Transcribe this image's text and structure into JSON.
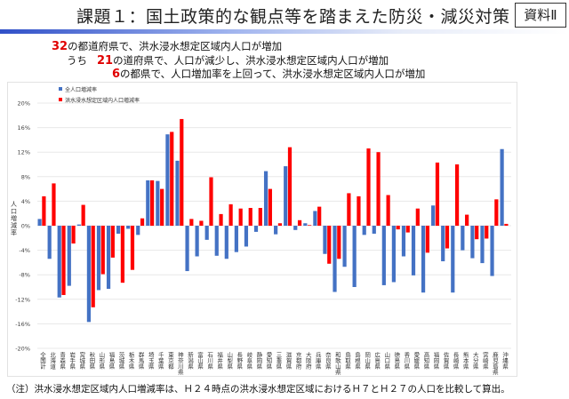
{
  "header": {
    "title": "課題１：国土政策的な観点等を踏まえた防災・減災対策",
    "badge": "資料Ⅱ"
  },
  "summary": {
    "line1": {
      "num": "32",
      "text": "の都道府県で、洪水浸水想定区域内人口が増加"
    },
    "line2": {
      "prefix": "うち",
      "num": "21",
      "text": "の道府県で、人口が減少し、洪水浸水想定区域内人口が増加"
    },
    "line3": {
      "num": "6",
      "text": "の都県で、人口増加率を上回って、洪水浸水想定区域内人口が増加"
    }
  },
  "note": "（注）洪水浸水想定区域内人口増減率は、Ｈ２４時点の洪水浸水想定区域におけるＨ７とＨ２７の人口を比較して算出。",
  "chart_data": {
    "type": "bar",
    "ylabel": "人口増減率",
    "ylim": [
      -20,
      20
    ],
    "yticks": [
      "20%",
      "16%",
      "12%",
      "8%",
      "4%",
      "0%",
      "-4%",
      "-8%",
      "-12%",
      "-16%",
      "-20%"
    ],
    "grid": true,
    "legend_position": "top-left",
    "categories": [
      "全国計",
      "北海道",
      "青森県",
      "岩手県",
      "宮城県",
      "秋田県",
      "山形県",
      "福島県",
      "茨城県",
      "栃木県",
      "群馬県",
      "埼玉県",
      "千葉県",
      "東京都",
      "神奈川県",
      "新潟県",
      "富山県",
      "石川県",
      "福井県",
      "山梨県",
      "長野県",
      "岐阜県",
      "静岡県",
      "愛知県",
      "三重県",
      "滋賀県",
      "京都府",
      "大阪府",
      "兵庫県",
      "奈良県",
      "和歌山県",
      "鳥取県",
      "島根県",
      "岡山県",
      "広島県",
      "山口県",
      "徳島県",
      "香川県",
      "愛媛県",
      "高知県",
      "福岡県",
      "佐賀県",
      "長崎県",
      "熊本県",
      "大分県",
      "宮崎県",
      "鹿児島県",
      "沖縄県"
    ],
    "series": [
      {
        "name": "全人口増減率",
        "color": "#4472c4",
        "values": [
          1.1,
          -5.4,
          -11.7,
          -9.8,
          0.2,
          -15.7,
          -10.5,
          -10.3,
          -1.3,
          -0.5,
          -1.5,
          7.4,
          7.3,
          14.9,
          10.6,
          -7.4,
          -5.0,
          -2.3,
          -4.9,
          -5.4,
          -4.3,
          -3.4,
          -1.0,
          8.9,
          -1.4,
          9.7,
          -0.7,
          0.4,
          2.4,
          -4.6,
          -10.8,
          -6.7,
          -10.0,
          -1.5,
          -1.3,
          -9.7,
          -9.2,
          -5.0,
          -8.1,
          -10.9,
          3.3,
          -5.8,
          -10.9,
          -4.0,
          -5.3,
          -6.1,
          -8.2,
          12.5
        ]
      },
      {
        "name": "洪水浸水想定区域内人口増減率",
        "color": "#ff0000",
        "values": [
          4.8,
          6.9,
          -11.3,
          -2.9,
          3.4,
          -13.3,
          -7.9,
          -5.2,
          -9.3,
          -7.2,
          1.2,
          7.4,
          6.0,
          15.3,
          17.4,
          1.1,
          0.8,
          7.9,
          1.9,
          3.5,
          2.8,
          2.9,
          2.9,
          6.0,
          0.4,
          12.8,
          0.9,
          0.1,
          3.1,
          -6.2,
          -5.4,
          5.3,
          4.8,
          12.6,
          12.0,
          5.0,
          -0.6,
          -1.1,
          2.8,
          -4.4,
          10.3,
          -3.7,
          10.0,
          1.8,
          -2.2,
          -2.1,
          4.3,
          0.3
        ]
      }
    ]
  }
}
